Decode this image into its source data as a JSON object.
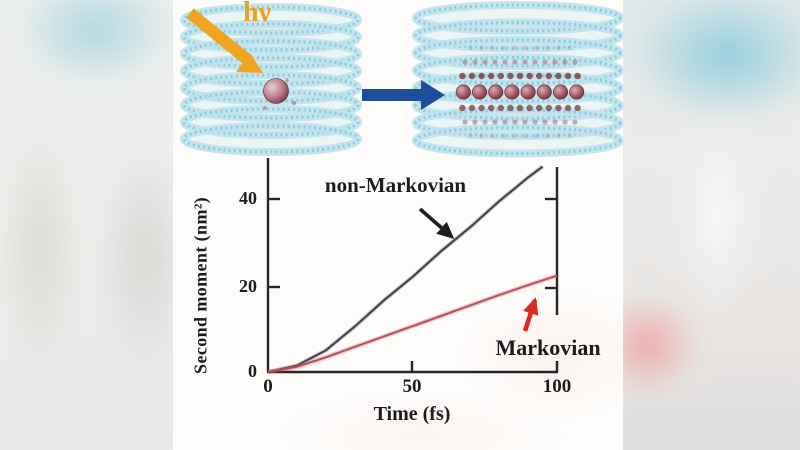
{
  "figure": {
    "photon_label": "hν",
    "colors": {
      "photon_arrow": "#f0a51f",
      "transfer_arrow": "#1e4d9a",
      "nanotube_blue": "#a9d8e6",
      "exciton_pink": "#b97f8c"
    }
  },
  "chart": {
    "ylabel": "Second moment (nm²)",
    "xlabel": "Time (fs)",
    "y_ticks": [
      "0",
      "20",
      "40"
    ],
    "x_ticks": [
      "0",
      "50",
      "100"
    ],
    "annotations": [
      {
        "label": "non-Markovian",
        "arrow_color": "#1d1d1d"
      },
      {
        "label": "Markovian",
        "arrow_color": "#d92b20"
      }
    ]
  },
  "chart_data": {
    "type": "line",
    "title": "",
    "xlabel": "Time (fs)",
    "ylabel": "Second moment (nm²)",
    "xlim": [
      0,
      100
    ],
    "ylim": [
      0,
      48
    ],
    "grid": false,
    "legend_position": "inline annotations with arrows",
    "series": [
      {
        "name": "non-Markovian",
        "color": "#40454b",
        "x": [
          0,
          10,
          20,
          30,
          40,
          50,
          60,
          70,
          80,
          90,
          95
        ],
        "values": [
          0,
          1.5,
          5,
          10.5,
          16.5,
          22,
          28,
          33.5,
          39.5,
          45,
          47.5
        ]
      },
      {
        "name": "Markovian",
        "color": "#bf4b52",
        "x": [
          0,
          10,
          20,
          30,
          40,
          50,
          60,
          70,
          80,
          90,
          100
        ],
        "values": [
          0,
          1.2,
          3.4,
          5.8,
          8.2,
          10.6,
          13,
          15.4,
          17.8,
          20.1,
          22.3
        ]
      }
    ]
  }
}
